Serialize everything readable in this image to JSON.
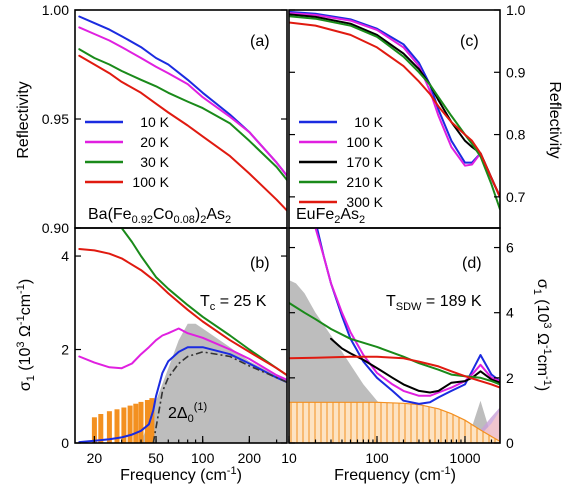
{
  "chart_data": [
    {
      "panel": "(a)",
      "type": "line",
      "annotation": "Ba(Fe0.92Co0.08)2As2",
      "ylabel": "Reflectivity",
      "xscale": "log",
      "xlim": [
        15,
        350
      ],
      "ylim": [
        0.9,
        1.0
      ],
      "yticks": [
        0.9,
        0.95,
        1.0
      ],
      "legend_position": "left",
      "series": [
        {
          "name": "10 K",
          "color": "#1b2be0",
          "x": [
            16,
            20,
            25,
            30,
            40,
            50,
            60,
            80,
            100,
            150,
            200,
            300,
            350
          ],
          "y": [
            0.997,
            0.994,
            0.991,
            0.988,
            0.983,
            0.978,
            0.975,
            0.968,
            0.962,
            0.952,
            0.944,
            0.93,
            0.924
          ]
        },
        {
          "name": "20 K",
          "color": "#e020e0",
          "x": [
            16,
            20,
            25,
            30,
            40,
            50,
            60,
            80,
            100,
            150,
            200,
            300,
            350
          ],
          "y": [
            0.992,
            0.989,
            0.986,
            0.983,
            0.978,
            0.974,
            0.971,
            0.966,
            0.96,
            0.951,
            0.944,
            0.93,
            0.924
          ]
        },
        {
          "name": "30 K",
          "color": "#1a8a1a",
          "x": [
            16,
            20,
            25,
            30,
            40,
            50,
            60,
            80,
            100,
            150,
            200,
            300,
            350
          ],
          "y": [
            0.982,
            0.978,
            0.975,
            0.972,
            0.968,
            0.965,
            0.962,
            0.958,
            0.955,
            0.948,
            0.94,
            0.928,
            0.922
          ]
        },
        {
          "name": "100 K",
          "color": "#e01a10",
          "x": [
            16,
            20,
            25,
            30,
            40,
            50,
            60,
            80,
            100,
            150,
            200,
            300,
            350
          ],
          "y": [
            0.979,
            0.975,
            0.971,
            0.967,
            0.962,
            0.957,
            0.953,
            0.947,
            0.942,
            0.933,
            0.925,
            0.913,
            0.908
          ]
        }
      ]
    },
    {
      "panel": "(c)",
      "type": "line",
      "annotation": "EuFe2As2",
      "ylabel": "Reflectivity",
      "xscale": "log",
      "xlim": [
        10,
        2500
      ],
      "ylim": [
        0.65,
        1.0
      ],
      "yticks": [
        0.7,
        0.8,
        0.9,
        1.0
      ],
      "legend_position": "left",
      "series": [
        {
          "name": "10 K",
          "color": "#1b2be0",
          "x": [
            10,
            20,
            50,
            100,
            200,
            300,
            400,
            500,
            700,
            1000,
            1200,
            1500,
            2000,
            2500
          ],
          "y": [
            0.997,
            0.994,
            0.985,
            0.97,
            0.945,
            0.915,
            0.88,
            0.84,
            0.79,
            0.755,
            0.755,
            0.77,
            0.73,
            0.7
          ]
        },
        {
          "name": "100 K",
          "color": "#e020e0",
          "x": [
            10,
            20,
            50,
            100,
            200,
            300,
            400,
            500,
            700,
            1000,
            1200,
            1500,
            2000,
            2500
          ],
          "y": [
            0.995,
            0.992,
            0.983,
            0.968,
            0.94,
            0.91,
            0.87,
            0.83,
            0.78,
            0.75,
            0.752,
            0.77,
            0.73,
            0.7
          ]
        },
        {
          "name": "170 K",
          "color": "#000000",
          "x": [
            10,
            20,
            50,
            100,
            200,
            300,
            400,
            500,
            700,
            1000,
            1200,
            1500,
            2000,
            2500
          ],
          "y": [
            0.993,
            0.989,
            0.978,
            0.96,
            0.93,
            0.905,
            0.88,
            0.855,
            0.82,
            0.79,
            0.78,
            0.77,
            0.73,
            0.7
          ]
        },
        {
          "name": "210 K",
          "color": "#1a8a1a",
          "x": [
            10,
            20,
            50,
            100,
            200,
            300,
            400,
            500,
            700,
            1000,
            1200,
            1500,
            2000,
            2500
          ],
          "y": [
            0.99,
            0.986,
            0.975,
            0.957,
            0.925,
            0.9,
            0.88,
            0.86,
            0.83,
            0.8,
            0.785,
            0.765,
            0.72,
            0.68
          ]
        },
        {
          "name": "300 K",
          "color": "#e01a10",
          "x": [
            10,
            20,
            50,
            100,
            200,
            300,
            400,
            500,
            700,
            1000,
            1200,
            1500,
            2000,
            2500
          ],
          "y": [
            0.98,
            0.975,
            0.96,
            0.94,
            0.91,
            0.885,
            0.865,
            0.845,
            0.82,
            0.8,
            0.79,
            0.77,
            0.73,
            0.7
          ]
        }
      ]
    },
    {
      "panel": "(b)",
      "type": "line",
      "annotation": "Tc = 25 K",
      "annotation2": "2Δ0(1)",
      "xlabel": "Frequency (cm-1)",
      "ylabel": "σ1 (10^3 Ω-1cm-1)",
      "xscale": "log",
      "xlim": [
        15,
        350
      ],
      "ylim": [
        0,
        4.6
      ],
      "xticks": [
        20,
        50,
        100,
        200
      ],
      "yticks": [
        0,
        2,
        4
      ],
      "series": [
        {
          "name": "10 K",
          "color": "#1b2be0",
          "x": [
            16,
            20,
            25,
            30,
            35,
            40,
            45,
            48,
            50,
            55,
            60,
            70,
            80,
            100,
            150,
            200,
            300,
            350
          ],
          "y": [
            0.02,
            0.05,
            0.08,
            0.12,
            0.18,
            0.26,
            0.4,
            0.7,
            1.0,
            1.5,
            1.75,
            1.95,
            2.05,
            2.05,
            1.9,
            1.7,
            1.4,
            1.3
          ]
        },
        {
          "name": "20 K",
          "color": "#e020e0",
          "x": [
            16,
            20,
            25,
            30,
            35,
            40,
            45,
            50,
            55,
            60,
            70,
            80,
            100,
            150,
            200,
            300,
            350
          ],
          "y": [
            1.85,
            1.72,
            1.62,
            1.6,
            1.7,
            1.9,
            2.05,
            2.2,
            2.3,
            2.35,
            2.45,
            2.35,
            2.25,
            2.0,
            1.8,
            1.45,
            1.35
          ]
        },
        {
          "name": "30 K",
          "color": "#1a8a1a",
          "x": [
            16,
            20,
            25,
            30,
            35,
            40,
            50,
            60,
            80,
            100,
            150,
            200,
            300,
            350
          ],
          "y": [
            5.5,
            5.2,
            4.9,
            4.6,
            4.3,
            4.0,
            3.55,
            3.3,
            2.95,
            2.7,
            2.3,
            2.0,
            1.6,
            1.45
          ]
        },
        {
          "name": "100 K",
          "color": "#e01a10",
          "x": [
            16,
            20,
            25,
            30,
            40,
            50,
            60,
            80,
            100,
            150,
            200,
            300,
            350
          ],
          "y": [
            4.15,
            4.12,
            4.05,
            3.95,
            3.7,
            3.45,
            3.2,
            2.85,
            2.6,
            2.2,
            1.95,
            1.6,
            1.45
          ]
        }
      ],
      "shaded_band": {
        "color": "#bdbdbd",
        "x": [
          40,
          50,
          60,
          70,
          80,
          90,
          100,
          150,
          200,
          300,
          350
        ],
        "y": [
          0.0,
          0.9,
          1.6,
          2.2,
          2.55,
          2.55,
          2.45,
          2.05,
          1.75,
          1.45,
          1.35
        ]
      },
      "bars": {
        "color": "#f39020",
        "x": [
          20,
          22,
          25,
          28,
          31,
          34,
          37,
          40,
          44,
          47
        ],
        "y": [
          0.55,
          0.62,
          0.68,
          0.72,
          0.76,
          0.8,
          0.84,
          0.88,
          0.92,
          0.96
        ]
      },
      "dash_dot_model": {
        "color": "#333333",
        "x": [
          48,
          55,
          60,
          70,
          80,
          100,
          150,
          200,
          300,
          350
        ],
        "y": [
          0.0,
          1.1,
          1.4,
          1.7,
          1.85,
          1.95,
          1.85,
          1.65,
          1.4,
          1.3
        ]
      }
    },
    {
      "panel": "(d)",
      "type": "line",
      "annotation": "TSDW = 189 K",
      "xlabel": "Frequency (cm-1)",
      "ylabel": "σ1 (10^3 Ω-1cm-1)",
      "xscale": "log",
      "xlim": [
        10,
        2500
      ],
      "ylim": [
        0,
        6.6
      ],
      "xticks": [
        10,
        100,
        1000
      ],
      "yticks": [
        0,
        2,
        4,
        6
      ],
      "series": [
        {
          "name": "10 K",
          "color": "#1b2be0",
          "x": [
            20,
            25,
            30,
            40,
            50,
            70,
            100,
            150,
            200,
            300,
            400,
            500,
            700,
            1000,
            1200,
            1500,
            2000,
            2500
          ],
          "y": [
            6.8,
            5.7,
            4.9,
            3.9,
            3.2,
            2.5,
            2.0,
            1.6,
            1.3,
            1.2,
            1.25,
            1.4,
            1.6,
            1.8,
            2.2,
            2.7,
            2.1,
            1.9
          ]
        },
        {
          "name": "100 K",
          "color": "#e020e0",
          "x": [
            20,
            25,
            30,
            40,
            50,
            70,
            100,
            150,
            200,
            300,
            400,
            500,
            700,
            1000,
            1200,
            1500,
            2000,
            2500
          ],
          "y": [
            6.6,
            5.7,
            4.9,
            4.0,
            3.4,
            2.7,
            2.15,
            1.8,
            1.6,
            1.45,
            1.45,
            1.55,
            1.7,
            1.9,
            2.1,
            2.4,
            2.0,
            1.9
          ]
        },
        {
          "name": "170 K",
          "color": "#000000",
          "x": [
            30,
            40,
            50,
            70,
            100,
            150,
            200,
            300,
            400,
            500,
            700,
            1000,
            1200,
            1500,
            2000,
            2500
          ],
          "y": [
            3.2,
            2.9,
            2.75,
            2.55,
            2.3,
            2.0,
            1.8,
            1.6,
            1.55,
            1.6,
            1.85,
            1.9,
            2.0,
            2.2,
            1.95,
            1.85
          ]
        },
        {
          "name": "210 K",
          "color": "#1a8a1a",
          "x": [
            10,
            15,
            20,
            30,
            50,
            100,
            200,
            300,
            500,
            700,
            1000,
            1500,
            2000,
            2500
          ],
          "y": [
            4.3,
            4.0,
            3.8,
            3.5,
            3.2,
            2.95,
            2.65,
            2.45,
            2.25,
            2.1,
            2.05,
            2.0,
            1.9,
            1.8
          ]
        },
        {
          "name": "300 K",
          "color": "#e01a10",
          "x": [
            10,
            20,
            50,
            100,
            200,
            300,
            500,
            700,
            1000,
            1500,
            2000,
            2500
          ],
          "y": [
            2.6,
            2.62,
            2.65,
            2.65,
            2.6,
            2.5,
            2.35,
            2.2,
            2.05,
            1.9,
            1.8,
            1.7
          ]
        }
      ],
      "shaded_band": {
        "color": "#bdbdbd",
        "x": [
          10,
          12,
          15,
          20,
          30,
          40,
          50,
          70,
          100,
          150,
          200,
          250,
          300,
          400,
          500,
          700,
          1000,
          1200,
          1500,
          1800,
          2000,
          2500
        ],
        "y": [
          5.0,
          4.9,
          4.6,
          4.0,
          3.3,
          2.8,
          2.4,
          1.8,
          1.3,
          0.8,
          0.4,
          0.2,
          0.1,
          0.05,
          0.02,
          0.0,
          0.0,
          0.5,
          1.3,
          0.6,
          0.2,
          0.0
        ]
      },
      "hatched_band": {
        "color": "#f39020",
        "x": [
          10,
          100,
          200,
          300,
          500,
          700,
          1000,
          1500,
          2000,
          2500
        ],
        "y": [
          1.25,
          1.25,
          1.22,
          1.18,
          1.05,
          0.9,
          0.7,
          0.4,
          0.2,
          0.05
        ]
      },
      "extra_bands": [
        {
          "color": "#c8a0d8",
          "x": [
            1000,
            1500,
            2000,
            2500
          ],
          "y": [
            0.0,
            0.4,
            0.8,
            1.1
          ]
        },
        {
          "color": "#f7c9c9",
          "x": [
            1200,
            1500,
            2000,
            2500
          ],
          "y": [
            0.0,
            0.25,
            0.6,
            1.0
          ]
        }
      ]
    }
  ]
}
